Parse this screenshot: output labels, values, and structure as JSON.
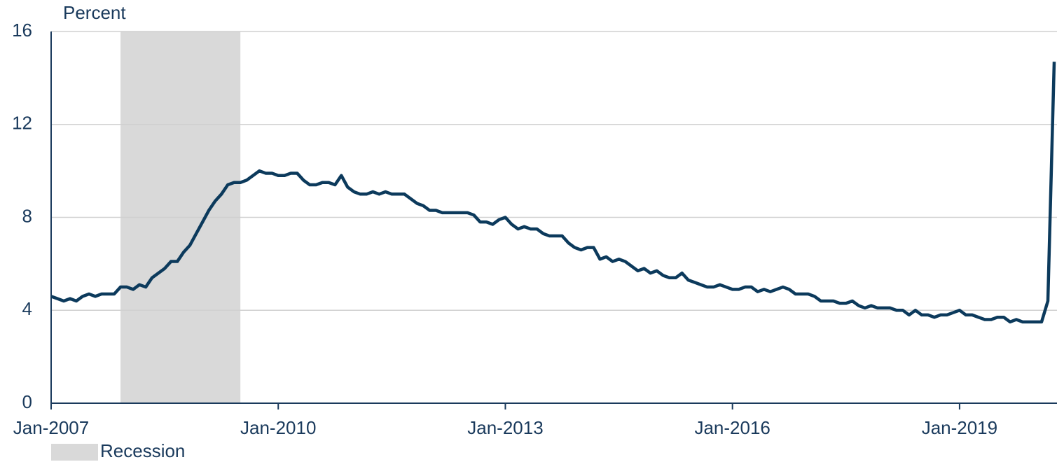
{
  "chart_data": {
    "type": "line",
    "y_label": "Percent",
    "x": [
      "2007-01",
      "2007-02",
      "2007-03",
      "2007-04",
      "2007-05",
      "2007-06",
      "2007-07",
      "2007-08",
      "2007-09",
      "2007-10",
      "2007-11",
      "2007-12",
      "2008-01",
      "2008-02",
      "2008-03",
      "2008-04",
      "2008-05",
      "2008-06",
      "2008-07",
      "2008-08",
      "2008-09",
      "2008-10",
      "2008-11",
      "2008-12",
      "2009-01",
      "2009-02",
      "2009-03",
      "2009-04",
      "2009-05",
      "2009-06",
      "2009-07",
      "2009-08",
      "2009-09",
      "2009-10",
      "2009-11",
      "2009-12",
      "2010-01",
      "2010-02",
      "2010-03",
      "2010-04",
      "2010-05",
      "2010-06",
      "2010-07",
      "2010-08",
      "2010-09",
      "2010-10",
      "2010-11",
      "2010-12",
      "2011-01",
      "2011-02",
      "2011-03",
      "2011-04",
      "2011-05",
      "2011-06",
      "2011-07",
      "2011-08",
      "2011-09",
      "2011-10",
      "2011-11",
      "2011-12",
      "2012-01",
      "2012-02",
      "2012-03",
      "2012-04",
      "2012-05",
      "2012-06",
      "2012-07",
      "2012-08",
      "2012-09",
      "2012-10",
      "2012-11",
      "2012-12",
      "2013-01",
      "2013-02",
      "2013-03",
      "2013-04",
      "2013-05",
      "2013-06",
      "2013-07",
      "2013-08",
      "2013-09",
      "2013-10",
      "2013-11",
      "2013-12",
      "2014-01",
      "2014-02",
      "2014-03",
      "2014-04",
      "2014-05",
      "2014-06",
      "2014-07",
      "2014-08",
      "2014-09",
      "2014-10",
      "2014-11",
      "2014-12",
      "2015-01",
      "2015-02",
      "2015-03",
      "2015-04",
      "2015-05",
      "2015-06",
      "2015-07",
      "2015-08",
      "2015-09",
      "2015-10",
      "2015-11",
      "2015-12",
      "2016-01",
      "2016-02",
      "2016-03",
      "2016-04",
      "2016-05",
      "2016-06",
      "2016-07",
      "2016-08",
      "2016-09",
      "2016-10",
      "2016-11",
      "2016-12",
      "2017-01",
      "2017-02",
      "2017-03",
      "2017-04",
      "2017-05",
      "2017-06",
      "2017-07",
      "2017-08",
      "2017-09",
      "2017-10",
      "2017-11",
      "2017-12",
      "2018-01",
      "2018-02",
      "2018-03",
      "2018-04",
      "2018-05",
      "2018-06",
      "2018-07",
      "2018-08",
      "2018-09",
      "2018-10",
      "2018-11",
      "2018-12",
      "2019-01",
      "2019-02",
      "2019-03",
      "2019-04",
      "2019-05",
      "2019-06",
      "2019-07",
      "2019-08",
      "2019-09",
      "2019-10",
      "2019-11",
      "2019-12",
      "2020-01",
      "2020-02",
      "2020-03",
      "2020-04"
    ],
    "series": [
      {
        "color": "#0c3a5c",
        "values": [
          4.6,
          4.5,
          4.4,
          4.5,
          4.4,
          4.6,
          4.7,
          4.6,
          4.7,
          4.7,
          4.7,
          5.0,
          5.0,
          4.9,
          5.1,
          5.0,
          5.4,
          5.6,
          5.8,
          6.1,
          6.1,
          6.5,
          6.8,
          7.3,
          7.8,
          8.3,
          8.7,
          9.0,
          9.4,
          9.5,
          9.5,
          9.6,
          9.8,
          10.0,
          9.9,
          9.9,
          9.8,
          9.8,
          9.9,
          9.9,
          9.6,
          9.4,
          9.4,
          9.5,
          9.5,
          9.4,
          9.8,
          9.3,
          9.1,
          9.0,
          9.0,
          9.1,
          9.0,
          9.1,
          9.0,
          9.0,
          9.0,
          8.8,
          8.6,
          8.5,
          8.3,
          8.3,
          8.2,
          8.2,
          8.2,
          8.2,
          8.2,
          8.1,
          7.8,
          7.8,
          7.7,
          7.9,
          8.0,
          7.7,
          7.5,
          7.6,
          7.5,
          7.5,
          7.3,
          7.2,
          7.2,
          7.2,
          6.9,
          6.7,
          6.6,
          6.7,
          6.7,
          6.2,
          6.3,
          6.1,
          6.2,
          6.1,
          5.9,
          5.7,
          5.8,
          5.6,
          5.7,
          5.5,
          5.4,
          5.4,
          5.6,
          5.3,
          5.2,
          5.1,
          5.0,
          5.0,
          5.1,
          5.0,
          4.9,
          4.9,
          5.0,
          5.0,
          4.8,
          4.9,
          4.8,
          4.9,
          5.0,
          4.9,
          4.7,
          4.7,
          4.7,
          4.6,
          4.4,
          4.4,
          4.4,
          4.3,
          4.3,
          4.4,
          4.2,
          4.1,
          4.2,
          4.1,
          4.1,
          4.1,
          4.0,
          4.0,
          3.8,
          4.0,
          3.8,
          3.8,
          3.7,
          3.8,
          3.8,
          3.9,
          4.0,
          3.8,
          3.8,
          3.7,
          3.6,
          3.6,
          3.7,
          3.7,
          3.5,
          3.6,
          3.5,
          3.5,
          3.5,
          3.5,
          4.4,
          14.7
        ]
      }
    ],
    "xlim": [
      "2007-01",
      "2020-04"
    ],
    "xticks": [
      {
        "value": "2007-01",
        "label": "Jan-2007"
      },
      {
        "value": "2010-01",
        "label": "Jan-2010"
      },
      {
        "value": "2013-01",
        "label": "Jan-2013"
      },
      {
        "value": "2016-01",
        "label": "Jan-2016"
      },
      {
        "value": "2019-01",
        "label": "Jan-2019"
      }
    ],
    "ylim": [
      0,
      16
    ],
    "yticks": [
      0,
      4,
      8,
      12,
      16
    ],
    "grid": true,
    "recession": {
      "label": "Recession",
      "color": "#d9d9d9",
      "start": "2007-12",
      "end": "2009-07"
    }
  }
}
